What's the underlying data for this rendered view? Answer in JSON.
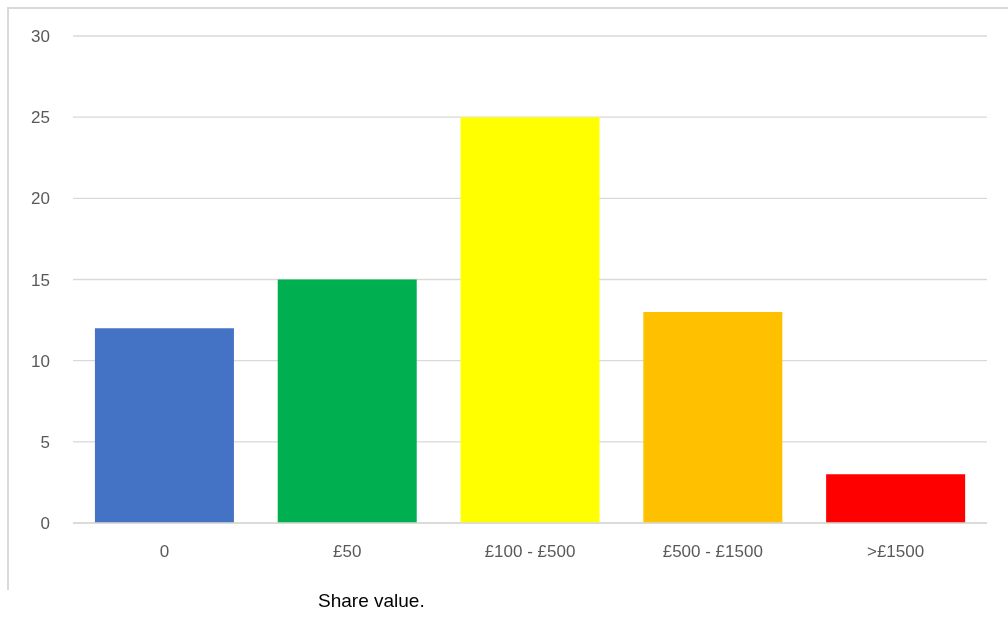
{
  "chart_data": {
    "type": "bar",
    "xlabel": "Share value.",
    "categories": [
      "0",
      "£50",
      "£100 - £500",
      "£500 - £1500",
      ">£1500"
    ],
    "values": [
      12,
      15,
      25,
      13,
      3
    ],
    "colors": [
      "#4472c4",
      "#00b050",
      "#ffff00",
      "#ffc000",
      "#ff0000"
    ],
    "ylim": [
      0,
      30
    ],
    "yticks": [
      0,
      5,
      10,
      15,
      20,
      25,
      30
    ],
    "grid": "y"
  }
}
